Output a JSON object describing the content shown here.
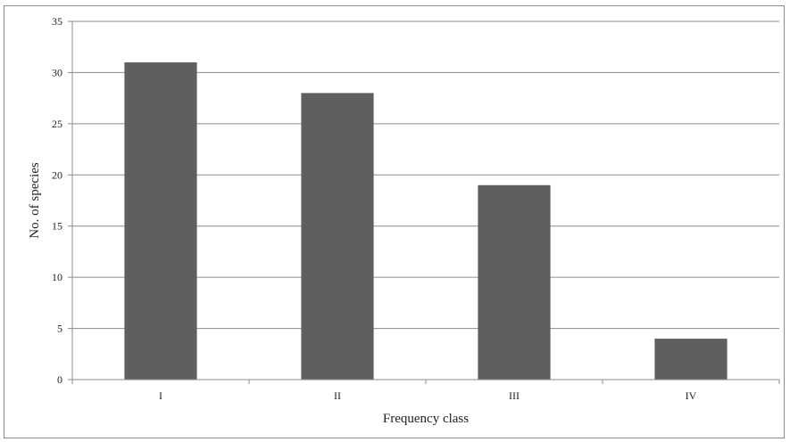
{
  "chart_data": {
    "type": "bar",
    "categories": [
      "I",
      "II",
      "III",
      "IV"
    ],
    "values": [
      31,
      28,
      19,
      4
    ],
    "xlabel": "Frequency class",
    "ylabel": "No. of species",
    "ylim": [
      0,
      35
    ],
    "yticks": [
      0,
      5,
      10,
      15,
      20,
      25,
      30,
      35
    ],
    "grid": true,
    "legend": "none",
    "colors": {
      "bar": "#5f5f5f",
      "grid": "#8c8c8c",
      "axis": "#8c8c8c",
      "frame": "#8c8c8c"
    }
  }
}
